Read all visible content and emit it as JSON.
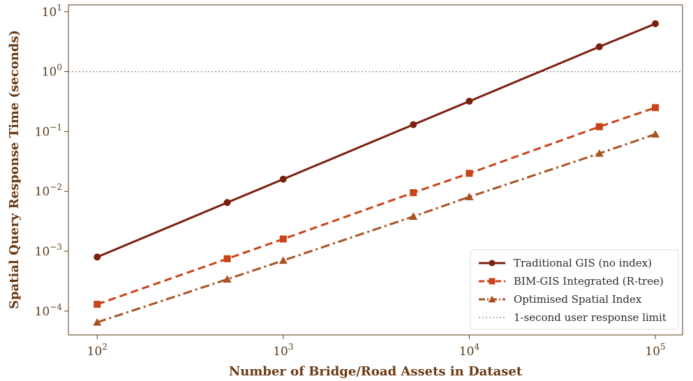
{
  "chart_data": {
    "type": "line",
    "title": "",
    "xlabel": "Number of Bridge/Road Assets in Dataset",
    "ylabel": "Spatial Query Response Time (seconds)",
    "xscale": "log",
    "yscale": "log",
    "xlim": [
      70,
      140000
    ],
    "ylim": [
      4e-05,
      13
    ],
    "x_ticks": [
      {
        "value": 100,
        "base": "10",
        "exp": "2"
      },
      {
        "value": 1000,
        "base": "10",
        "exp": "3"
      },
      {
        "value": 10000,
        "base": "10",
        "exp": "4"
      },
      {
        "value": 100000,
        "base": "10",
        "exp": "5"
      }
    ],
    "y_ticks": [
      {
        "value": 0.0001,
        "base": "10",
        "exp": "−4"
      },
      {
        "value": 0.001,
        "base": "10",
        "exp": "−3"
      },
      {
        "value": 0.01,
        "base": "10",
        "exp": "−2"
      },
      {
        "value": 0.1,
        "base": "10",
        "exp": "−1"
      },
      {
        "value": 1,
        "base": "10",
        "exp": "0"
      },
      {
        "value": 10,
        "base": "10",
        "exp": "1"
      }
    ],
    "x": [
      100,
      500,
      1000,
      5000,
      10000,
      50000,
      100000
    ],
    "series": [
      {
        "name": "Traditional GIS (no index)",
        "values": [
          0.0008,
          0.0065,
          0.016,
          0.13,
          0.32,
          2.6,
          6.3
        ],
        "color": "#7b1f0e",
        "dash": "solid",
        "marker": "circle"
      },
      {
        "name": "BIM-GIS Integrated (R-tree)",
        "values": [
          0.00013,
          0.00075,
          0.0016,
          0.0095,
          0.02,
          0.12,
          0.25
        ],
        "color": "#c9431a",
        "dash": "dashed",
        "marker": "square"
      },
      {
        "name": "Optimised Spatial Index",
        "values": [
          6.5e-05,
          0.00034,
          0.0007,
          0.0038,
          0.0081,
          0.043,
          0.09
        ],
        "color": "#a85321",
        "dash": "dashdot",
        "marker": "triangle"
      }
    ],
    "reference_line": {
      "name": "1-second user response limit",
      "y": 1,
      "color": "#8a8a8a",
      "style": "dotted"
    },
    "legend_position": "bottom-right",
    "grid": false
  }
}
